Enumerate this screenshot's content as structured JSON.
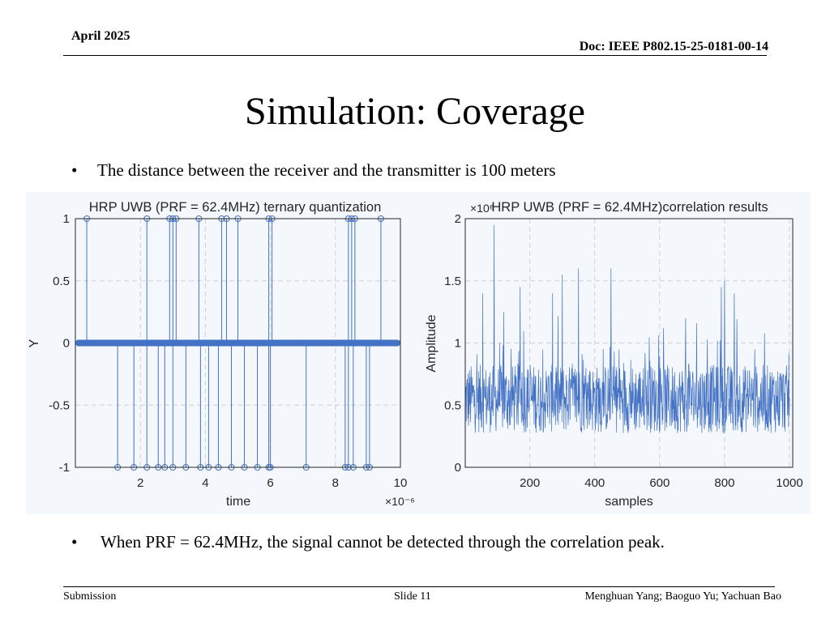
{
  "header": {
    "date": "April 2025",
    "doc": "Doc: IEEE P802.15-25-0181-00-14"
  },
  "title": "Simulation: Coverage",
  "bullets": [
    "The distance between the receiver and the transmitter is 100 meters",
    "When PRF = 62.4MHz, the signal cannot be detected through the correlation peak."
  ],
  "footer": {
    "left": "Submission",
    "center": "Slide 11",
    "right": "Menghuan Yang; Baoguo Yu; Yachuan Bao"
  },
  "colors": {
    "series": "#4472c4",
    "grid": "#d0d0d0",
    "background": "#f4f7fb"
  },
  "chart_data": [
    {
      "type": "stem",
      "title": "HRP UWB (PRF = 62.4MHz) ternary quantization",
      "xlabel": "time",
      "ylabel": "Y",
      "x_exponent": "×10⁻⁶",
      "xlim": [
        0,
        10
      ],
      "ylim": [
        -1,
        1
      ],
      "xticks": [
        2,
        4,
        6,
        8,
        10
      ],
      "yticks": [
        -1,
        -0.5,
        0,
        0.5,
        1
      ],
      "ytick_labels": [
        "-1",
        "-0.5",
        "0",
        "0.5",
        "1"
      ],
      "grid": true,
      "x_plus_one": [
        0.35,
        2.2,
        2.9,
        3.0,
        3.1,
        3.8,
        4.5,
        4.65,
        5.0,
        5.95,
        6.05,
        8.4,
        8.5,
        8.6,
        9.4
      ],
      "x_minus_one": [
        1.3,
        1.8,
        2.2,
        2.55,
        2.75,
        3.0,
        3.4,
        3.85,
        4.1,
        4.4,
        4.8,
        5.2,
        5.6,
        5.95,
        6.0,
        7.1,
        8.3,
        8.4,
        8.55,
        8.95,
        9.05
      ]
    },
    {
      "type": "line",
      "title": "HRP UWB (PRF = 62.4MHz)correlation results",
      "xlabel": "samples",
      "ylabel": "Amplitude",
      "y_exponent": "×10⁶",
      "xlim": [
        1,
        1010
      ],
      "ylim": [
        0,
        2
      ],
      "xticks": [
        200,
        400,
        600,
        800,
        1000
      ],
      "yticks": [
        0,
        0.5,
        1,
        1.5,
        2
      ],
      "ytick_labels": [
        "0",
        "0.5",
        "1",
        "1.5",
        "2"
      ],
      "grid": true,
      "n_samples": 1000,
      "baseline": 0.55,
      "peaks": [
        {
          "x": 90,
          "y": 1.95
        },
        {
          "x": 300,
          "y": 1.55
        },
        {
          "x": 55,
          "y": 1.4
        },
        {
          "x": 170,
          "y": 1.45
        },
        {
          "x": 350,
          "y": 1.6
        },
        {
          "x": 450,
          "y": 1.6
        },
        {
          "x": 270,
          "y": 1.4
        },
        {
          "x": 790,
          "y": 1.45
        },
        {
          "x": 800,
          "y": 1.5
        },
        {
          "x": 830,
          "y": 1.4
        },
        {
          "x": 120,
          "y": 1.25
        },
        {
          "x": 680,
          "y": 1.2
        }
      ]
    }
  ]
}
